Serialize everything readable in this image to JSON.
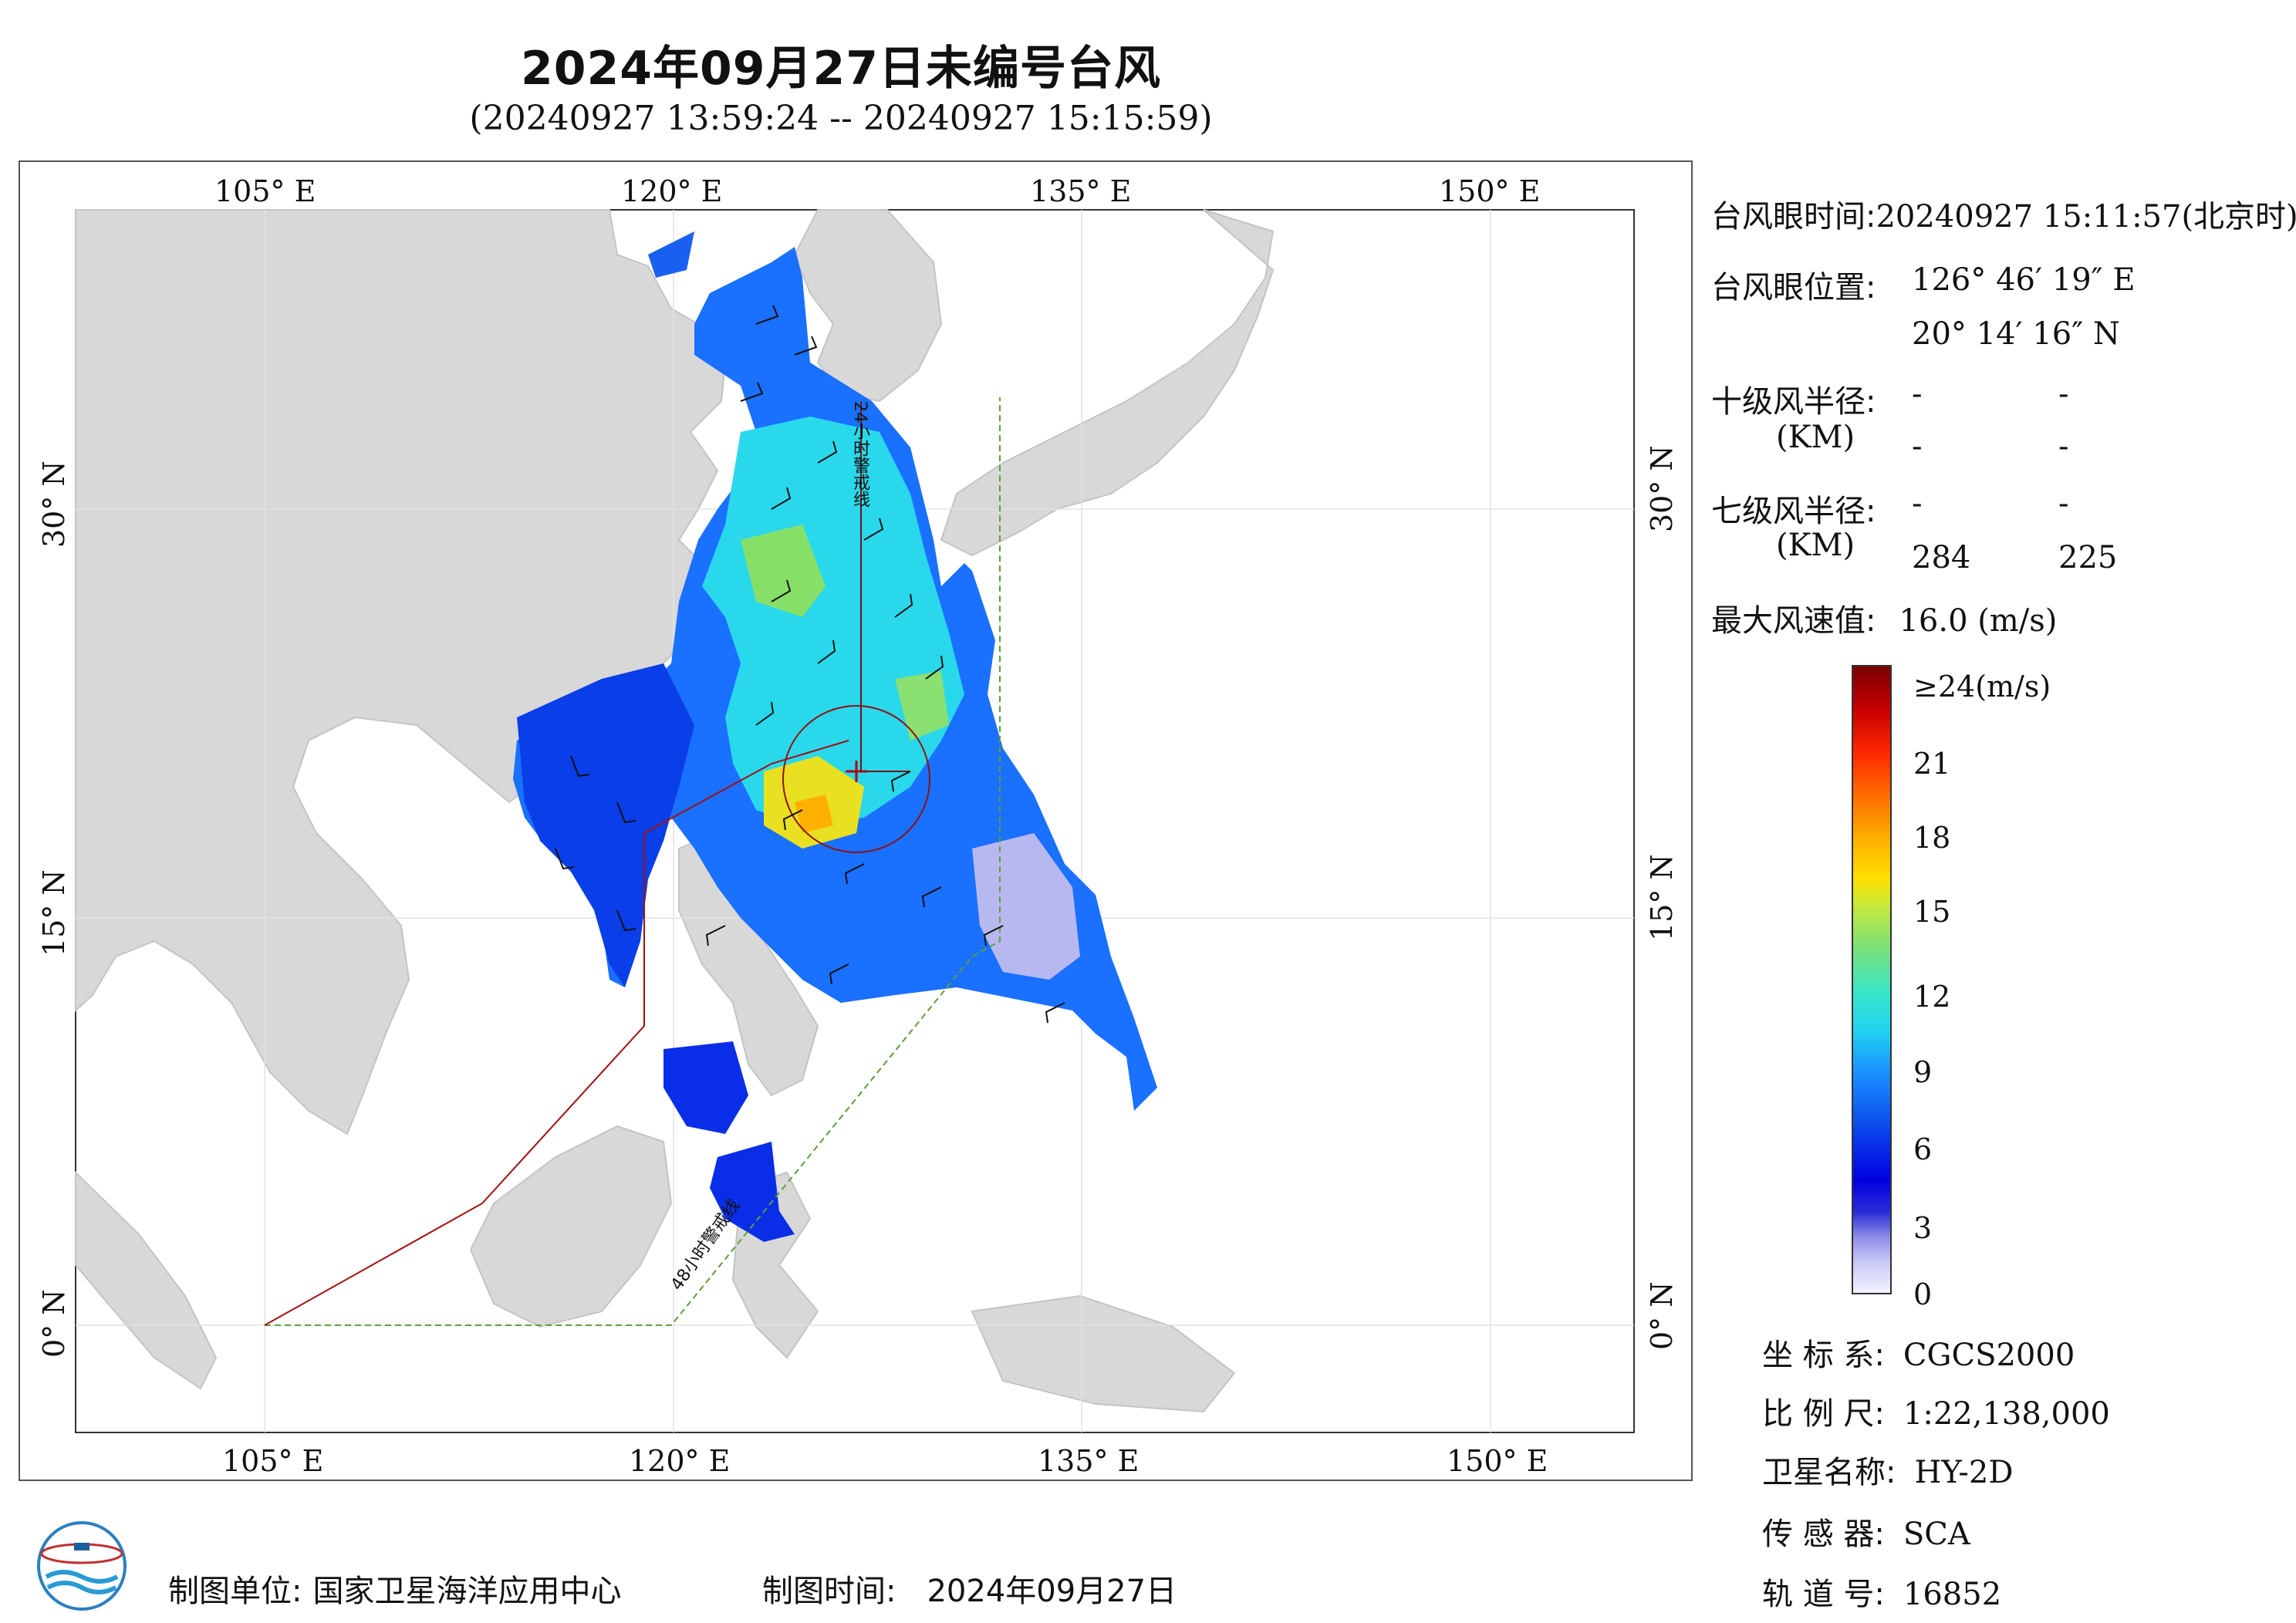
{
  "header": {
    "title": "2024年09月27日未编号台风",
    "subtitle": "(20240927 13:59:24 -- 20240927 15:15:59)"
  },
  "map": {
    "lon_ticks": [
      "105° E",
      "120° E",
      "135° E",
      "150° E"
    ],
    "lat_ticks": [
      "30° N",
      "15° N",
      "0° N"
    ],
    "line_24h": "24小时警戒线",
    "line_48h": "48小时警戒线",
    "colors": {
      "land": "#d8d8d8",
      "sea": "#ffffff",
      "warning_24h": "#6e1616",
      "warning_48h": "#5aa03c",
      "nine_dash": "#a01010"
    }
  },
  "info": {
    "eye_time_label": "台风眼时间:",
    "eye_time_value": "20240927 15:11:57(北京时)",
    "eye_pos_label": "台风眼位置:",
    "eye_lon": "126° 46′ 19″ E",
    "eye_lat": "20° 14′ 16″ N",
    "r10_label": "十级风半径:",
    "r10_unit": "(KM)",
    "r10_v1": "-",
    "r10_v2": "-",
    "r10_v3": "-",
    "r10_v4": "-",
    "r7_label": "七级风半径:",
    "r7_unit": "(KM)",
    "r7_v1": "-",
    "r7_v2": "-",
    "r7_v3": "284",
    "r7_v4": "225",
    "max_wind_label": "最大风速值:",
    "max_wind_value": "16.0 (m/s)"
  },
  "colorbar": {
    "labels": [
      "≥24(m/s)",
      "21",
      "18",
      "15",
      "12",
      "9",
      "6",
      "3",
      "0"
    ]
  },
  "metadata": {
    "crs_label": "坐 标 系:",
    "crs_value": "CGCS2000",
    "scale_label": "比 例 尺:",
    "scale_value": "1:22,138,000",
    "satellite_label": "卫星名称:",
    "satellite_value": "HY-2D",
    "sensor_label": "传 感 器:",
    "sensor_value": "SCA",
    "orbit_label": "轨 道 号:",
    "orbit_value": "16852"
  },
  "footer": {
    "unit_label": "制图单位:",
    "unit_value": "国家卫星海洋应用中心",
    "time_label": "制图时间:",
    "time_value": "2024年09月27日"
  }
}
